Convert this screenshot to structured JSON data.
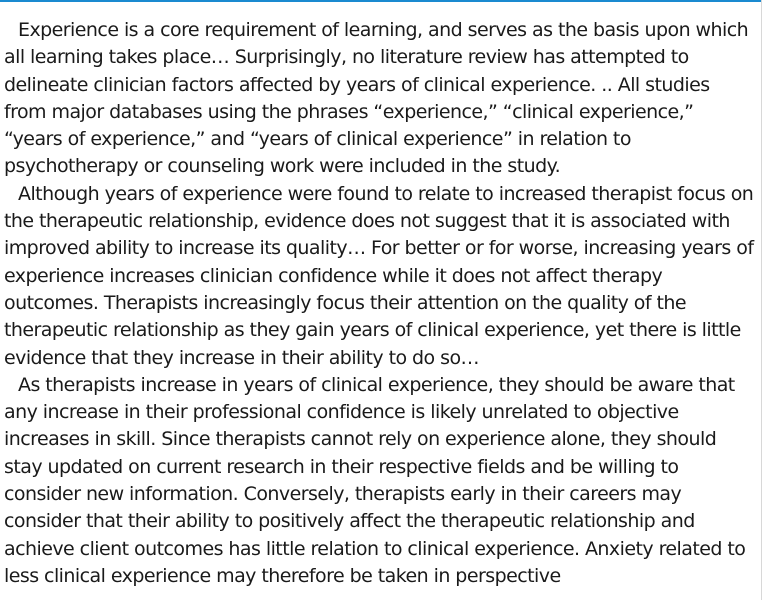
{
  "document": {
    "accent_color": "#1a8ad0",
    "paragraphs": [
      "Experience is a core requirement of learning, and serves as the basis upon which all learning takes place… Surprisingly, no literature review has attempted to delineate clinician factors affected by years of clinical experience. .. All studies from major databases using the phrases “experience,” “clinical experience,” “years of experience,” and “years of clinical experience” in relation to psychotherapy or counseling work were included in the study.",
      "Although years of experience were found to relate to increased therapist focus on the therapeutic relationship, evidence does not suggest that it is associated with improved ability to increase its quality… For better or for worse, increasing years of experience increases clinician confidence while it does not affect therapy outcomes. Therapists increasingly focus their attention on the quality of the therapeutic relationship as they gain years of clinical experience, yet there is little evidence that they increase in their ability to do so…",
      "As therapists increase in years of clinical experience, they should be aware that any increase in their professional confidence is likely unrelated to objective increases in skill. Since therapists cannot rely on experience alone, they should stay updated on current research in their respective fields and be willing to consider new information. Conversely, therapists early in their careers may consider that their ability to positively affect the therapeutic relationship and achieve client outcomes has little relation to clinical experience. Anxiety related to less clinical experience may therefore be taken in perspective"
    ]
  }
}
